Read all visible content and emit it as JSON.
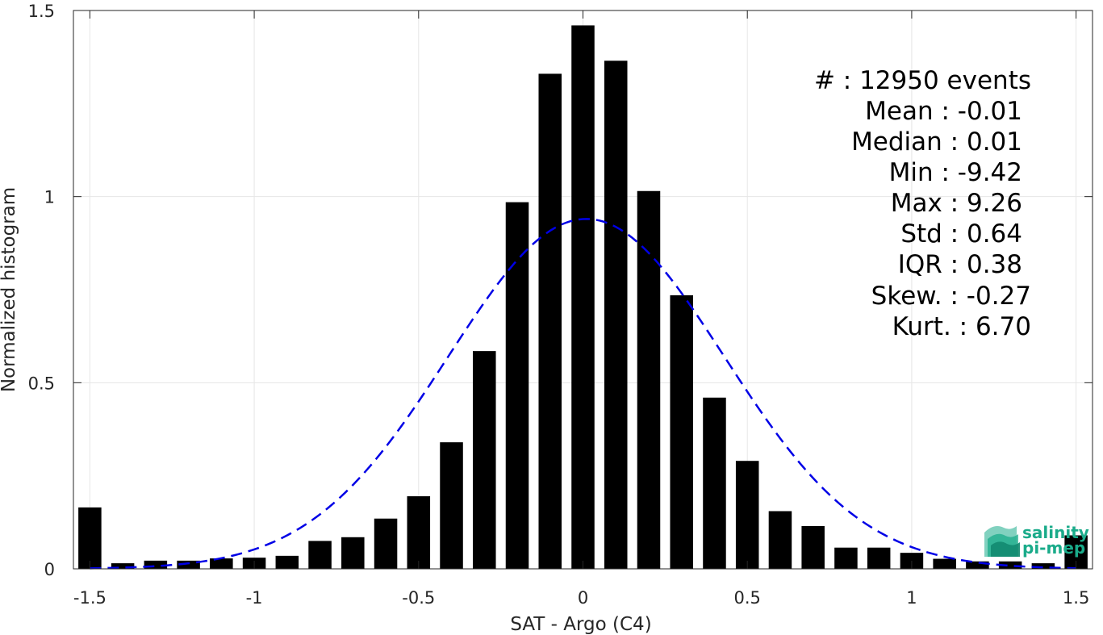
{
  "chart_data": {
    "type": "bar",
    "xlabel": "SAT - Argo (C4)",
    "ylabel": "Normalized histogram",
    "xlim": [
      -1.55,
      1.55
    ],
    "ylim": [
      0,
      1.5
    ],
    "xticks": [
      -1.5,
      -1,
      -0.5,
      0,
      0.5,
      1,
      1.5
    ],
    "xtick_labels": [
      "-1.5",
      "-1",
      "-0.5",
      "0",
      "0.5",
      "1",
      "1.5"
    ],
    "yticks": [
      0,
      0.5,
      1,
      1.5
    ],
    "ytick_labels": [
      "0",
      "0.5",
      "1",
      "1.5"
    ],
    "grid": true,
    "bar_color": "#000000",
    "bar_width": 0.07,
    "x": [
      -1.5,
      -1.4,
      -1.3,
      -1.2,
      -1.1,
      -1.0,
      -0.9,
      -0.8,
      -0.7,
      -0.6,
      -0.5,
      -0.4,
      -0.3,
      -0.2,
      -0.1,
      0.0,
      0.1,
      0.2,
      0.3,
      0.4,
      0.5,
      0.6,
      0.7,
      0.8,
      0.9,
      1.0,
      1.1,
      1.2,
      1.3,
      1.4,
      1.5
    ],
    "values": [
      0.165,
      0.015,
      0.022,
      0.022,
      0.028,
      0.03,
      0.035,
      0.075,
      0.085,
      0.135,
      0.195,
      0.34,
      0.585,
      0.985,
      1.33,
      1.46,
      1.365,
      1.015,
      0.735,
      0.46,
      0.29,
      0.155,
      0.115,
      0.057,
      0.057,
      0.043,
      0.027,
      0.02,
      0.02,
      0.015,
      0.09
    ],
    "fit": {
      "type": "gaussian",
      "mean": 0.01,
      "std": 0.42,
      "peak": 0.94,
      "color": "#0000e6",
      "style": "dashed",
      "x_range": [
        -1.5,
        1.5
      ]
    },
    "stats": [
      "#  : 12950 events",
      "Mean : -0.01",
      "Median : 0.01",
      "Min : -9.42",
      "Max : 9.26",
      "Std : 0.64",
      "IQR : 0.38",
      "Skew. : -0.27",
      "Kurt. : 6.70"
    ],
    "stats_placement": "top-right"
  },
  "logo": {
    "line1": "salinity",
    "line2": "pi-mep",
    "color": "#1aab8a",
    "placement": "bottom-right"
  }
}
